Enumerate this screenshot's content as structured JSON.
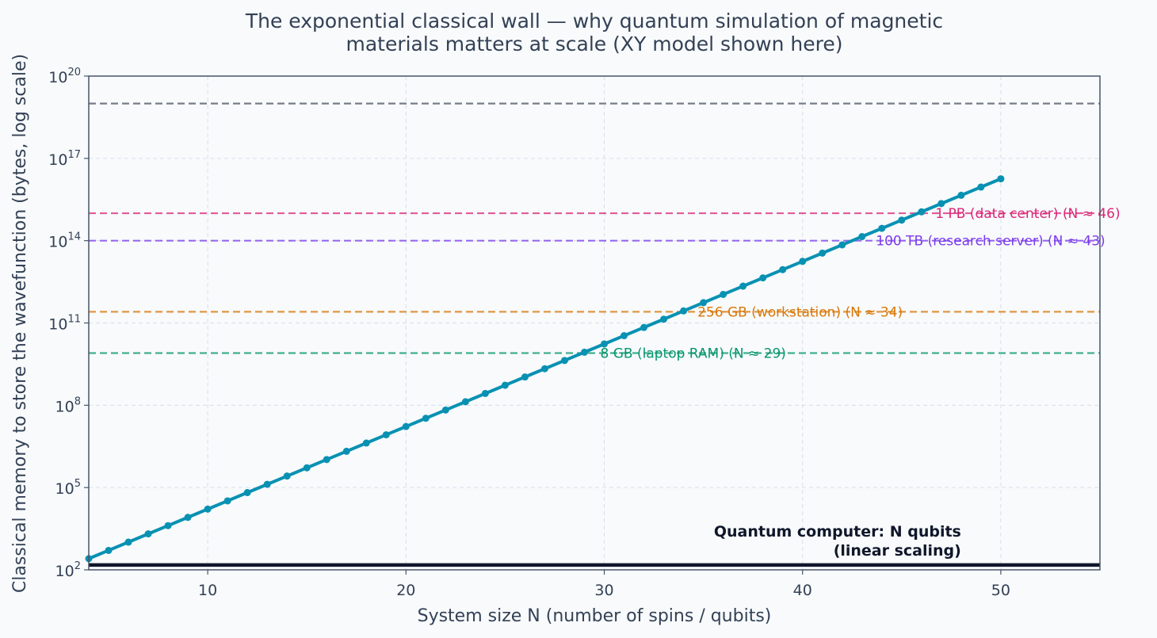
{
  "chart_data": {
    "type": "line",
    "title_lines": [
      "The exponential classical wall — why quantum simulation of magnetic",
      "materials matters at scale (XY model shown here)"
    ],
    "xlabel": "System size N (number of spins / qubits)",
    "ylabel": "Classical memory to store the wavefunction (bytes, log scale)",
    "xlim": [
      4,
      55
    ],
    "ylim_log10": [
      2,
      20
    ],
    "y_scale": "log",
    "grid": true,
    "x_ticks": [
      10,
      20,
      30,
      40,
      50
    ],
    "y_ticks": [
      {
        "exp": 2,
        "base": "10",
        "sup": "2"
      },
      {
        "exp": 5,
        "base": "10",
        "sup": "5"
      },
      {
        "exp": 8,
        "base": "10",
        "sup": "8"
      },
      {
        "exp": 11,
        "base": "10",
        "sup": "11"
      },
      {
        "exp": 14,
        "base": "10",
        "sup": "14"
      },
      {
        "exp": 17,
        "base": "10",
        "sup": "17"
      },
      {
        "exp": 20,
        "base": "10",
        "sup": "20"
      }
    ],
    "series": [
      {
        "color": "#0891b2",
        "x": [
          4,
          5,
          6,
          7,
          8,
          9,
          10,
          11,
          12,
          13,
          14,
          15,
          16,
          17,
          18,
          19,
          20,
          21,
          22,
          23,
          24,
          25,
          26,
          27,
          28,
          29,
          30,
          31,
          32,
          33,
          34,
          35,
          36,
          37,
          38,
          39,
          40,
          41,
          42,
          43,
          44,
          45,
          46,
          47,
          48,
          49,
          50
        ],
        "y": [
          256,
          512,
          1024,
          2048,
          4096,
          8192,
          16384,
          32768,
          65536,
          131072,
          262144,
          524288,
          1048576,
          2097152,
          4194304,
          8388608,
          16777216,
          33554432,
          67108864,
          134217728,
          268435456,
          536870912,
          1073741824,
          2147483648,
          4294967296,
          8589934592,
          17179869184,
          34359738368,
          68719476736,
          137438953472,
          274877906944,
          549755813888,
          1099511627776,
          2199023255552,
          4398046511104,
          8796093022208,
          17592186044416,
          35184372088832,
          70368744177664,
          140737488355328,
          281474976710656,
          562949953421312,
          1125899906842624,
          2251799813685248,
          4503599627370496,
          9007199254740992,
          18014398509481984
        ]
      }
    ],
    "reference_lines": [
      {
        "y": 8000000000.0,
        "label": "8 GB (laptop RAM)  (N ≈ 29)",
        "color": "#059669",
        "label_at_x": 29.8
      },
      {
        "y": 256000000000.0,
        "label": "256 GB (workstation)  (N ≈ 34)",
        "color": "#d97706",
        "label_at_x": 34.7
      },
      {
        "y": 100000000000000.0,
        "label": "100 TB (research server)  (N ≈ 43)",
        "color": "#7c3aed",
        "label_at_x": 43.7
      },
      {
        "y": 1000000000000000.0,
        "label": "1 PB (data center)  (N ≈ 46)",
        "color": "#db2777",
        "label_at_x": 46.7
      },
      {
        "y": 1e+19,
        "label": "",
        "color": "#4b5563",
        "label_at_x": null
      }
    ],
    "quantum_line": {
      "y": 150,
      "color": "#0f172a",
      "label_lines": [
        "Quantum computer: N qubits",
        "(linear scaling)"
      ],
      "label_right_x": 48
    }
  }
}
